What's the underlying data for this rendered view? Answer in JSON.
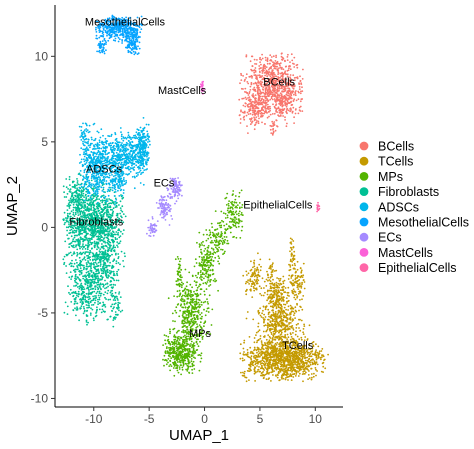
{
  "chart_data": {
    "type": "scatter",
    "xlabel": "UMAP_1",
    "ylabel": "UMAP_2",
    "xlim": [
      -13.5,
      12.5
    ],
    "ylim": [
      -10.5,
      13
    ],
    "xticks": [
      -10,
      -5,
      0,
      5,
      10
    ],
    "yticks": [
      -10,
      -5,
      0,
      5,
      10
    ],
    "xtick_labels": [
      "-10",
      "-5",
      "0",
      "5",
      "10"
    ],
    "ytick_labels": [
      "-10",
      "-5",
      "0",
      "5",
      "10"
    ],
    "grid": false,
    "legend_position": "right",
    "series": [
      {
        "name": "BCells",
        "color": "#F8766D",
        "label": "BCells",
        "label_at": [
          5.3,
          8.3
        ],
        "extent": {
          "x": [
            3.1,
            8.9
          ],
          "y": [
            5.3,
            10.2
          ]
        },
        "centroid": [
          6.0,
          8.2
        ],
        "blobs": [
          {
            "cx": 6.3,
            "cy": 8.4,
            "rx": 2.5,
            "ry": 1.6,
            "n": 750
          },
          {
            "cx": 4.6,
            "cy": 6.9,
            "rx": 1.3,
            "ry": 0.9,
            "n": 180
          },
          {
            "cx": 7.2,
            "cy": 7.1,
            "rx": 0.9,
            "ry": 0.8,
            "n": 90
          },
          {
            "cx": 6.3,
            "cy": 5.9,
            "rx": 0.3,
            "ry": 0.6,
            "n": 25
          }
        ]
      },
      {
        "name": "TCells",
        "color": "#C49A00",
        "label": "TCells",
        "label_at": [
          7.0,
          -7.1
        ],
        "extent": {
          "x": [
            3.2,
            11.2
          ],
          "y": [
            -9.0,
            -0.6
          ]
        },
        "centroid": [
          7.2,
          -7.0
        ],
        "blobs": [
          {
            "cx": 7.1,
            "cy": -7.7,
            "rx": 3.3,
            "ry": 1.1,
            "n": 1200
          },
          {
            "cx": 6.7,
            "cy": -5.4,
            "rx": 1.6,
            "ry": 1.4,
            "n": 420
          },
          {
            "cx": 6.5,
            "cy": -3.8,
            "rx": 0.9,
            "ry": 0.9,
            "n": 160
          },
          {
            "cx": 4.4,
            "cy": -3.0,
            "rx": 0.6,
            "ry": 0.9,
            "n": 90
          },
          {
            "cx": 8.3,
            "cy": -3.2,
            "rx": 0.6,
            "ry": 0.9,
            "n": 90
          },
          {
            "cx": 7.9,
            "cy": -1.6,
            "rx": 0.3,
            "ry": 0.9,
            "n": 40
          },
          {
            "cx": 5.9,
            "cy": -2.5,
            "rx": 0.3,
            "ry": 0.5,
            "n": 25
          }
        ]
      },
      {
        "name": "MPs",
        "color": "#53B400",
        "label": "MPs",
        "label_at": [
          -1.4,
          -6.4
        ],
        "extent": {
          "x": [
            -3.8,
            3.5
          ],
          "y": [
            -8.9,
            2.4
          ]
        },
        "centroid": [
          -1.6,
          -5.8
        ],
        "blobs": [
          {
            "cx": -2.1,
            "cy": -7.3,
            "rx": 1.4,
            "ry": 0.9,
            "n": 420
          },
          {
            "cx": -1.2,
            "cy": -4.9,
            "rx": 1.3,
            "ry": 1.6,
            "n": 380
          },
          {
            "cx": 0.2,
            "cy": -2.1,
            "rx": 0.8,
            "ry": 1.4,
            "n": 180
          },
          {
            "cx": 2.6,
            "cy": 0.7,
            "rx": 0.9,
            "ry": 1.0,
            "n": 120
          },
          {
            "cx": 1.3,
            "cy": -0.6,
            "rx": 0.8,
            "ry": 0.9,
            "n": 90
          },
          {
            "cx": -2.3,
            "cy": -2.7,
            "rx": 0.3,
            "ry": 1.0,
            "n": 40
          }
        ]
      },
      {
        "name": "Fibroblasts",
        "color": "#00C094",
        "label": "Fibroblasts",
        "label_at": [
          -12.2,
          0.1
        ],
        "extent": {
          "x": [
            -12.8,
            -7.1
          ],
          "y": [
            -5.8,
            3.2
          ]
        },
        "centroid": [
          -10.0,
          -0.4
        ],
        "blobs": [
          {
            "cx": -10.0,
            "cy": 0.2,
            "rx": 2.4,
            "ry": 1.9,
            "n": 1100
          },
          {
            "cx": -10.6,
            "cy": -3.4,
            "rx": 1.8,
            "ry": 2.0,
            "n": 500
          },
          {
            "cx": -8.8,
            "cy": -2.0,
            "rx": 1.0,
            "ry": 1.6,
            "n": 200
          },
          {
            "cx": -11.6,
            "cy": 1.8,
            "rx": 0.8,
            "ry": 1.1,
            "n": 120
          },
          {
            "cx": -8.1,
            "cy": -4.6,
            "rx": 0.5,
            "ry": 0.9,
            "n": 50
          }
        ]
      },
      {
        "name": "ADSCs",
        "color": "#00B6EB",
        "label": "ADSCs",
        "label_at": [
          -10.7,
          3.2
        ],
        "extent": {
          "x": [
            -11.3,
            -4.9
          ],
          "y": [
            0.4,
            6.5
          ]
        },
        "centroid": [
          -8.5,
          4.0
        ],
        "blobs": [
          {
            "cx": -9.8,
            "cy": 3.6,
            "rx": 1.4,
            "ry": 1.5,
            "n": 500
          },
          {
            "cx": -7.3,
            "cy": 4.2,
            "rx": 1.5,
            "ry": 1.0,
            "n": 420
          },
          {
            "cx": -5.6,
            "cy": 4.6,
            "rx": 0.7,
            "ry": 1.3,
            "n": 240
          },
          {
            "cx": -7.8,
            "cy": 2.6,
            "rx": 0.8,
            "ry": 0.7,
            "n": 110
          },
          {
            "cx": -10.9,
            "cy": 5.3,
            "rx": 0.4,
            "ry": 0.8,
            "n": 40
          }
        ]
      },
      {
        "name": "MesothelialCells",
        "color": "#06A4FF",
        "label": "MesothelialCells",
        "label_at": [
          -10.8,
          11.8
        ],
        "extent": {
          "x": [
            -10.1,
            -5.6
          ],
          "y": [
            10.1,
            12.4
          ]
        },
        "centroid": [
          -7.8,
          11.6
        ],
        "blobs": [
          {
            "cx": -7.9,
            "cy": 11.7,
            "rx": 1.8,
            "ry": 0.6,
            "n": 420
          },
          {
            "cx": -6.5,
            "cy": 10.9,
            "rx": 0.7,
            "ry": 0.7,
            "n": 140
          },
          {
            "cx": -9.3,
            "cy": 10.6,
            "rx": 0.5,
            "ry": 0.5,
            "n": 50
          }
        ]
      },
      {
        "name": "ECs",
        "color": "#A58AFF",
        "label": "ECs",
        "label_at": [
          -4.6,
          2.4
        ],
        "extent": {
          "x": [
            -5.4,
            -2.0
          ],
          "y": [
            -0.6,
            2.9
          ]
        },
        "centroid": [
          -3.7,
          1.3
        ],
        "blobs": [
          {
            "cx": -2.6,
            "cy": 2.3,
            "rx": 0.5,
            "ry": 0.6,
            "n": 90
          },
          {
            "cx": -3.6,
            "cy": 1.2,
            "rx": 0.6,
            "ry": 0.7,
            "n": 90
          },
          {
            "cx": -4.7,
            "cy": -0.1,
            "rx": 0.4,
            "ry": 0.5,
            "n": 40
          }
        ]
      },
      {
        "name": "MastCells",
        "color": "#FB61D7",
        "label": "MastCells",
        "label_at": [
          -4.2,
          7.8
        ],
        "extent": {
          "x": [
            -0.4,
            0.0
          ],
          "y": [
            7.8,
            8.6
          ]
        },
        "centroid": [
          -0.2,
          8.2
        ],
        "blobs": [
          {
            "cx": -0.2,
            "cy": 8.2,
            "rx": 0.15,
            "ry": 0.35,
            "n": 22
          }
        ]
      },
      {
        "name": "EpithelialCells",
        "color": "#FF66A8",
        "label": "EpithelialCells",
        "label_at": [
          3.5,
          1.1
        ],
        "extent": {
          "x": [
            10.0,
            10.5
          ],
          "y": [
            0.8,
            1.5
          ]
        },
        "centroid": [
          10.2,
          1.2
        ],
        "blobs": [
          {
            "cx": 10.25,
            "cy": 1.15,
            "rx": 0.12,
            "ry": 0.28,
            "n": 16
          }
        ]
      }
    ]
  }
}
